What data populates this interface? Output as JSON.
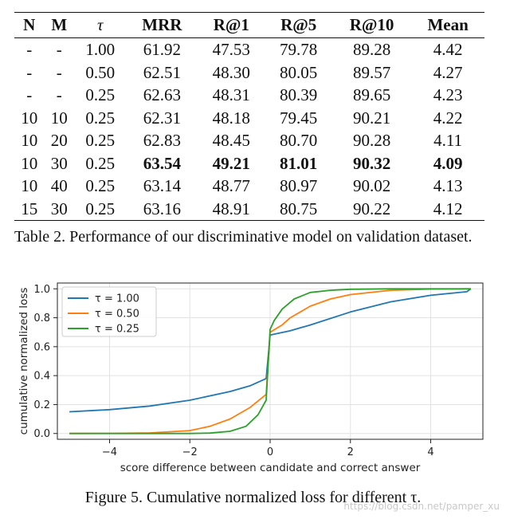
{
  "table": {
    "headers": [
      "N",
      "M",
      "τ",
      "MRR",
      "R@1",
      "R@5",
      "R@10",
      "Mean"
    ],
    "rows": [
      [
        "-",
        "-",
        "1.00",
        "61.92",
        "47.53",
        "79.78",
        "89.28",
        "4.42"
      ],
      [
        "-",
        "-",
        "0.50",
        "62.51",
        "48.30",
        "80.05",
        "89.57",
        "4.27"
      ],
      [
        "-",
        "-",
        "0.25",
        "62.63",
        "48.31",
        "80.39",
        "89.65",
        "4.23"
      ],
      [
        "10",
        "10",
        "0.25",
        "62.31",
        "48.18",
        "79.45",
        "90.21",
        "4.22"
      ],
      [
        "10",
        "20",
        "0.25",
        "62.83",
        "48.45",
        "80.70",
        "90.28",
        "4.11"
      ],
      [
        "10",
        "30",
        "0.25",
        "63.54",
        "49.21",
        "81.01",
        "90.32",
        "4.09"
      ],
      [
        "10",
        "40",
        "0.25",
        "63.14",
        "48.77",
        "80.97",
        "90.02",
        "4.13"
      ],
      [
        "15",
        "30",
        "0.25",
        "63.16",
        "48.91",
        "80.75",
        "90.22",
        "4.12"
      ]
    ],
    "bold_row_index": 5,
    "caption": "Table 2. Performance of our discriminative model on validation dataset."
  },
  "figure": {
    "caption": "Figure 5. Cumulative normalized loss for different τ."
  },
  "watermark": "https://blog.csdn.net/pamper_xu",
  "chart_data": {
    "type": "line",
    "title": "",
    "xlabel": "score difference between candidate and correct answer",
    "ylabel": "cumulative normalized loss",
    "xlim": [
      -5.3,
      5.3
    ],
    "ylim": [
      -0.04,
      1.04
    ],
    "xticks": [
      -4,
      -2,
      0,
      2,
      4
    ],
    "xtick_labels": [
      "−4",
      "−2",
      "0",
      "2",
      "4"
    ],
    "yticks": [
      0.0,
      0.2,
      0.4,
      0.6,
      0.8,
      1.0
    ],
    "ytick_labels": [
      "0.0",
      "0.2",
      "0.4",
      "0.6",
      "0.8",
      "1.0"
    ],
    "grid": true,
    "legend_position": "top-left",
    "series": [
      {
        "name": "τ = 1.00",
        "color": "#1f77b4",
        "x": [
          -5,
          -4,
          -3,
          -2,
          -1,
          -0.5,
          -0.1,
          0,
          0.5,
          1,
          2,
          3,
          4,
          4.9,
          5
        ],
        "y": [
          0.15,
          0.165,
          0.19,
          0.23,
          0.29,
          0.33,
          0.38,
          0.68,
          0.71,
          0.75,
          0.84,
          0.91,
          0.955,
          0.98,
          1.0
        ]
      },
      {
        "name": "τ = 0.50",
        "color": "#ff7f0e",
        "x": [
          -5,
          -4,
          -3,
          -2,
          -1.5,
          -1,
          -0.5,
          -0.1,
          0,
          0.3,
          0.5,
          1,
          1.5,
          2,
          3,
          4,
          5
        ],
        "y": [
          0.0,
          0.001,
          0.004,
          0.02,
          0.05,
          0.1,
          0.18,
          0.27,
          0.7,
          0.75,
          0.8,
          0.88,
          0.93,
          0.96,
          0.99,
          0.998,
          1.0
        ]
      },
      {
        "name": "τ = 0.25",
        "color": "#2ca02c",
        "x": [
          -5,
          -3,
          -2,
          -1.5,
          -1,
          -0.6,
          -0.3,
          -0.1,
          0,
          0.1,
          0.3,
          0.6,
          1,
          1.5,
          2,
          3,
          5
        ],
        "y": [
          0.0,
          0.0,
          0.0,
          0.003,
          0.015,
          0.05,
          0.13,
          0.23,
          0.72,
          0.78,
          0.86,
          0.93,
          0.975,
          0.99,
          0.997,
          1.0,
          1.0
        ]
      }
    ]
  }
}
